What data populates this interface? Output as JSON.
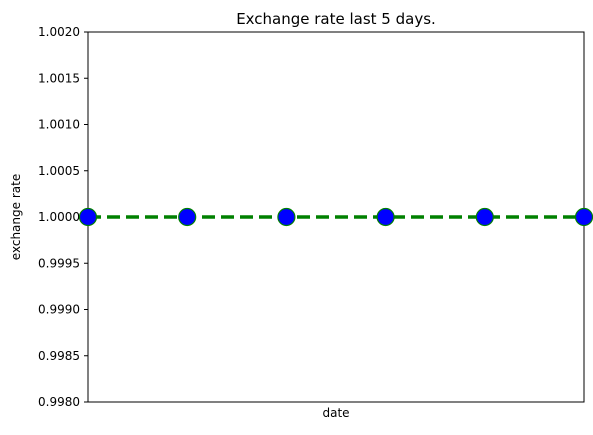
{
  "chart_data": {
    "type": "line",
    "title": "Exchange rate last 5 days.",
    "xlabel": "date",
    "ylabel": "exchange rate",
    "ylim": [
      0.998,
      1.002
    ],
    "yticks": [
      "1.0020",
      "1.0015",
      "1.0010",
      "1.0005",
      "1.0000",
      "0.9995",
      "0.9990",
      "0.9985",
      "0.9980"
    ],
    "x_tick_labels_visible": false,
    "grid": false,
    "series": [
      {
        "values": [
          1.0,
          1.0,
          1.0,
          1.0,
          1.0,
          1.0
        ],
        "line_style": "dashed",
        "line_color": "#008000",
        "marker": "circle",
        "marker_face_color": "#0000ff",
        "marker_edge_color": "#008000"
      }
    ]
  }
}
